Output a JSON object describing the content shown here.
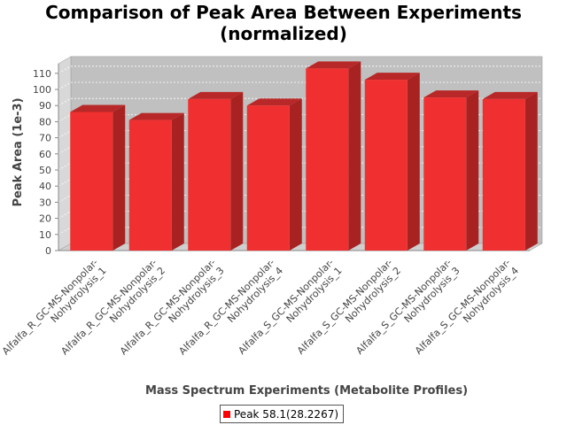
{
  "chart_data": {
    "type": "bar",
    "title_line1": "Comparison of Peak Area Between Experiments",
    "title_line2": "(normalized)",
    "xlabel": "Mass Spectrum Experiments (Metabolite Profiles)",
    "ylabel": "Peak Area (1e-3)",
    "categories": [
      "Alfalfa_R_GC-MS-Nonpolar-Nohydrolysis_1",
      "Alfalfa_R_GC-MS-Nonpolar-Nohydrolysis_2",
      "Alfalfa_R_GC-MS-Nonpolar-Nohydrolysis_3",
      "Alfalfa_R_GC-MS-Nonpolar-Nohydrolysis_4",
      "Alfalfa_S_GC-MS-Nonpolar-Nohydrolysis_1",
      "Alfalfa_S_GC-MS-Nonpolar-Nohydrolysis_2",
      "Alfalfa_S_GC-MS-Nonpolar-Nohydrolysis_3",
      "Alfalfa_S_GC-MS-Nonpolar-Nohydrolysis_4"
    ],
    "category_lines": [
      [
        "Alfalfa_R_GC-MS-Nonpolar-",
        "Nohydrolysis_1"
      ],
      [
        "Alfalfa_R_GC-MS-Nonpolar-",
        "Nohydrolysis_2"
      ],
      [
        "Alfalfa_R_GC-MS-Nonpolar-",
        "Nohydrolysis_3"
      ],
      [
        "Alfalfa_R_GC-MS-Nonpolar-",
        "Nohydrolysis_4"
      ],
      [
        "Alfalfa_S_GC-MS-Nonpolar-",
        "Nohydrolysis_1"
      ],
      [
        "Alfalfa_S_GC-MS-Nonpolar-",
        "Nohydrolysis_2"
      ],
      [
        "Alfalfa_S_GC-MS-Nonpolar-",
        "Nohydrolysis_3"
      ],
      [
        "Alfalfa_S_GC-MS-Nonpolar-",
        "Nohydrolysis_4"
      ]
    ],
    "series": [
      {
        "name": "Peak 58.1(28.2267)",
        "values": [
          86,
          81,
          94,
          90,
          113,
          106,
          95,
          94
        ]
      }
    ],
    "ylim": [
      0,
      110
    ],
    "yticks": [
      0,
      10,
      20,
      30,
      40,
      50,
      60,
      70,
      80,
      90,
      100,
      110
    ],
    "grid": true,
    "legend_position": "bottom-center",
    "colors": {
      "bar_front": "#f03030",
      "bar_top": "#b82828",
      "bar_side": "#a82222",
      "plot_background": "#c0c0c0",
      "plot_back_wall": "#cfcfcf"
    }
  }
}
